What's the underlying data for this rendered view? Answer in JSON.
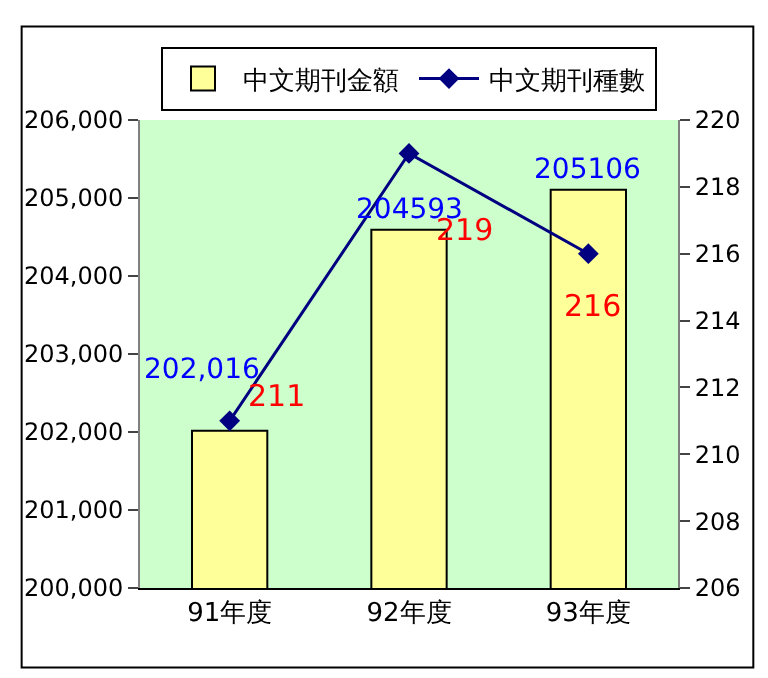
{
  "chart_data": {
    "type": "bar",
    "categories": [
      "91年度",
      "92年度",
      "93年度"
    ],
    "series": [
      {
        "name": "中文期刊金額",
        "color": "#ffff99",
        "values": [
          202016,
          204593,
          205106
        ],
        "value_labels": [
          "202,016",
          "204593",
          "205106"
        ]
      },
      {
        "name": "中文期刊種數",
        "type": "line",
        "axis": "y2",
        "color": "#000080",
        "values": [
          211,
          219,
          216
        ],
        "value_labels": [
          "211",
          "219",
          "216"
        ]
      }
    ],
    "ylim": [
      200000,
      206000
    ],
    "yticks": [
      {
        "value": 200000,
        "label": "200,000"
      },
      {
        "value": 201000,
        "label": "201,000"
      },
      {
        "value": 202000,
        "label": "202,000"
      },
      {
        "value": 203000,
        "label": "203,000"
      },
      {
        "value": 204000,
        "label": "204,000"
      },
      {
        "value": 205000,
        "label": "205,000"
      },
      {
        "value": 206000,
        "label": "206,000"
      }
    ],
    "y2lim": [
      206,
      220
    ],
    "y2ticks": [
      206,
      208,
      210,
      212,
      214,
      216,
      218,
      220
    ],
    "marker": "diamond",
    "grid": false,
    "legend": "top"
  }
}
